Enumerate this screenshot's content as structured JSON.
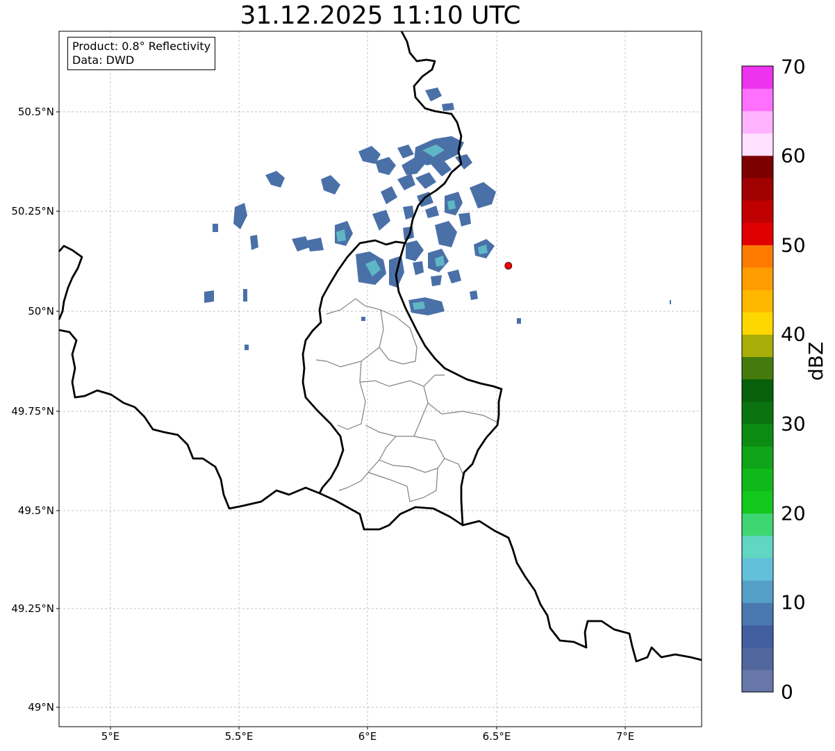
{
  "title": "31.12.2025 11:10 UTC",
  "info": {
    "product": "Product: 0.8° Reflectivity",
    "source": "Data: DWD"
  },
  "map": {
    "lon_range": [
      4.8,
      7.3
    ],
    "lat_range": [
      48.95,
      50.7
    ],
    "x_ticks": [
      "5°E",
      "5.5°E",
      "6°E",
      "6.5°E",
      "7°E"
    ],
    "y_ticks": [
      "50.5°N",
      "50.25°N",
      "50°N",
      "49.75°N",
      "49.5°N",
      "49.25°N",
      "49°N"
    ],
    "marker": {
      "lon": 6.548,
      "lat": 50.11,
      "color": "#ff0000"
    },
    "gridlines": true
  },
  "colorbar": {
    "label": "dBZ",
    "min": 0,
    "max": 70,
    "ticks": [
      "0",
      "10",
      "20",
      "30",
      "40",
      "50",
      "60",
      "70"
    ],
    "colors": [
      "#6677a8",
      "#52679e",
      "#425e9f",
      "#4a78b0",
      "#569fc8",
      "#63c0da",
      "#61d6c2",
      "#3ed671",
      "#12c81d",
      "#10b81a",
      "#0fa419",
      "#0b8b12",
      "#0b7410",
      "#08600b",
      "#457a0c",
      "#a9ad07",
      "#ffd700",
      "#ffb700",
      "#ff9c00",
      "#ff7b00",
      "#e00000",
      "#c00000",
      "#a00000",
      "#7c0000",
      "#ffe0ff",
      "#ffb3ff",
      "#ff70ff",
      "#ee33ee"
    ]
  }
}
